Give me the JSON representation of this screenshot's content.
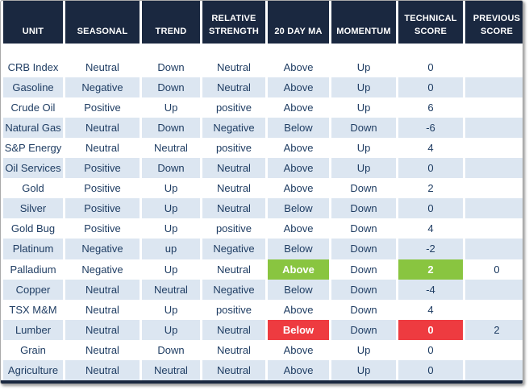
{
  "colors": {
    "header_bg": "#1A2840",
    "border": "#1A2840",
    "row_alt": "#DCE6F1",
    "text": "#1F3D63",
    "green": "#89C540",
    "red": "#EE3B40"
  },
  "chart_data": {
    "type": "table",
    "columns": [
      "UNIT",
      "SEASONAL",
      "TREND",
      "RELATIVE STRENGTH",
      "20 DAY MA",
      "MOMENTUM",
      "TECHNICAL SCORE",
      "PREVIOUS SCORE"
    ],
    "column_display_labels": [
      "UNIT",
      "SEASONAL",
      "TREND",
      "RELATIVE\nSTRENGTH",
      "20 DAY MA",
      "MOMENTUM",
      "TECHNICAL\nSCORE",
      "PREVIOUS\nSCORE"
    ],
    "rows": [
      [
        "CRB Index",
        "Neutral",
        "Down",
        "Neutral",
        "Above",
        "Up",
        "0",
        ""
      ],
      [
        "Gasoline",
        "Negative",
        "Down",
        "Neutral",
        "Above",
        "Up",
        "0",
        ""
      ],
      [
        "Crude Oil",
        "Positive",
        "Up",
        "positive",
        "Above",
        "Up",
        "6",
        ""
      ],
      [
        "Natural Gas",
        "Neutral",
        "Down",
        "Negative",
        "Below",
        "Down",
        "-6",
        ""
      ],
      [
        "S&P Energy",
        "Neutral",
        "Neutral",
        "positive",
        "Above",
        "Up",
        "4",
        ""
      ],
      [
        "Oil Services",
        "Positive",
        "Down",
        "Neutral",
        "Above",
        "Up",
        "0",
        ""
      ],
      [
        "Gold",
        "Positive",
        "Up",
        "Neutral",
        "Above",
        "Down",
        "2",
        ""
      ],
      [
        "Silver",
        "Positive",
        "Up",
        "Neutral",
        "Below",
        "Down",
        "0",
        ""
      ],
      [
        "Gold Bug",
        "Positive",
        "Up",
        "positive",
        "Above",
        "Down",
        "4",
        ""
      ],
      [
        "Platinum",
        "Negative",
        "up",
        "Negative",
        "Below",
        "Down",
        "-2",
        ""
      ],
      [
        "Palladium",
        "Negative",
        "Up",
        "Neutral",
        "Above",
        "Down",
        "2",
        "0"
      ],
      [
        "Copper",
        "Neutral",
        "Neutral",
        "Negative",
        "Below",
        "Down",
        "-4",
        ""
      ],
      [
        "TSX M&M",
        "Neutral",
        "Up",
        "positive",
        "Above",
        "Down",
        "4",
        ""
      ],
      [
        "Lumber",
        "Neutral",
        "Up",
        "Neutral",
        "Below",
        "Down",
        "0",
        "2"
      ],
      [
        "Grain",
        "Neutral",
        "Down",
        "Neutral",
        "Above",
        "Up",
        "0",
        ""
      ],
      [
        "Agriculture",
        "Neutral",
        "Neutral",
        "Neutral",
        "Above",
        "Up",
        "0",
        ""
      ]
    ],
    "highlighted_cells": [
      {
        "row": "Palladium",
        "column": "20 DAY MA",
        "color": "green"
      },
      {
        "row": "Palladium",
        "column": "TECHNICAL SCORE",
        "color": "green"
      },
      {
        "row": "Lumber",
        "column": "20 DAY MA",
        "color": "red"
      },
      {
        "row": "Lumber",
        "column": "TECHNICAL SCORE",
        "color": "red"
      }
    ]
  }
}
